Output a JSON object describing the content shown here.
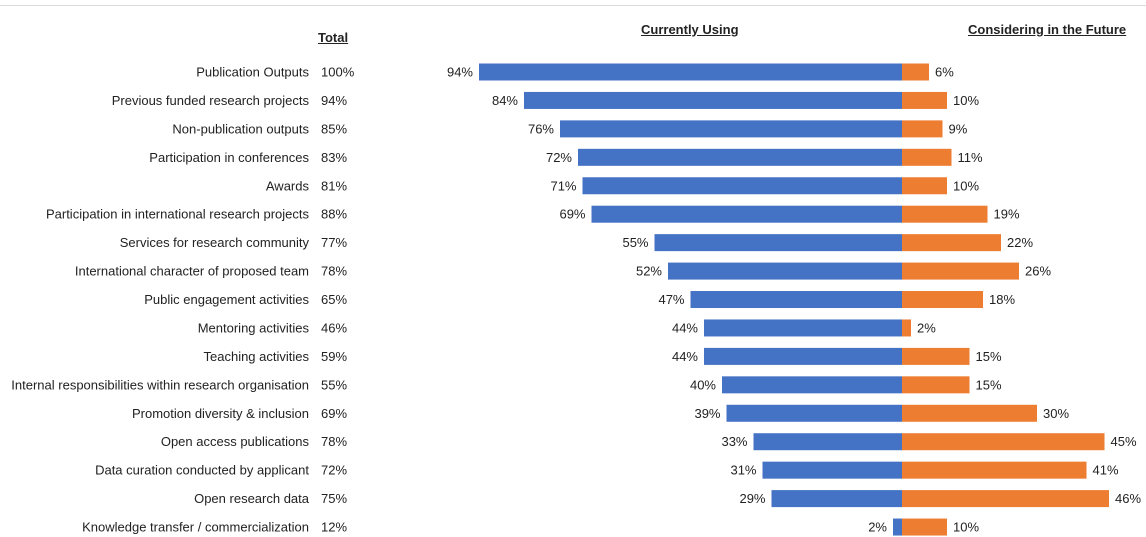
{
  "chart_data": {
    "type": "bar",
    "headers": {
      "total": "Total",
      "currently": "Currently Using",
      "future": "Considering in the Future"
    },
    "categories": [
      "Publication Outputs",
      "Previous funded research projects",
      "Non-publication outputs",
      "Participation in conferences",
      "Awards",
      "Participation in international research projects",
      "Services for research community",
      "International character of proposed team",
      "Public engagement activities",
      "Mentoring activities",
      "Teaching activities",
      "Internal responsibilities within research organisation",
      "Promotion diversity & inclusion",
      "Open access publications",
      "Data curation conducted by applicant",
      "Open research data",
      "Knowledge transfer / commercialization"
    ],
    "total_labels": [
      "100%",
      "94%",
      "85%",
      "83%",
      "81%",
      "88%",
      "77%",
      "78%",
      "65%",
      "46%",
      "59%",
      "55%",
      "69%",
      "78%",
      "72%",
      "75%",
      "12%"
    ],
    "series": [
      {
        "key": "currently",
        "color": "#4472c4",
        "values": [
          94,
          84,
          76,
          72,
          71,
          69,
          55,
          52,
          47,
          44,
          44,
          40,
          39,
          33,
          31,
          29,
          2
        ],
        "labels": [
          "94%",
          "84%",
          "76%",
          "72%",
          "71%",
          "69%",
          "55%",
          "52%",
          "47%",
          "44%",
          "44%",
          "40%",
          "39%",
          "33%",
          "31%",
          "29%",
          "2%"
        ]
      },
      {
        "key": "future",
        "color": "#ed7d31",
        "values": [
          6,
          10,
          9,
          11,
          10,
          19,
          22,
          26,
          18,
          2,
          15,
          15,
          30,
          45,
          41,
          46,
          10
        ],
        "labels": [
          "6%",
          "10%",
          "9%",
          "11%",
          "10%",
          "19%",
          "22%",
          "26%",
          "18%",
          "2%",
          "15%",
          "15%",
          "30%",
          "45%",
          "41%",
          "46%",
          "10%"
        ]
      }
    ],
    "grid": false,
    "legend": "none"
  }
}
